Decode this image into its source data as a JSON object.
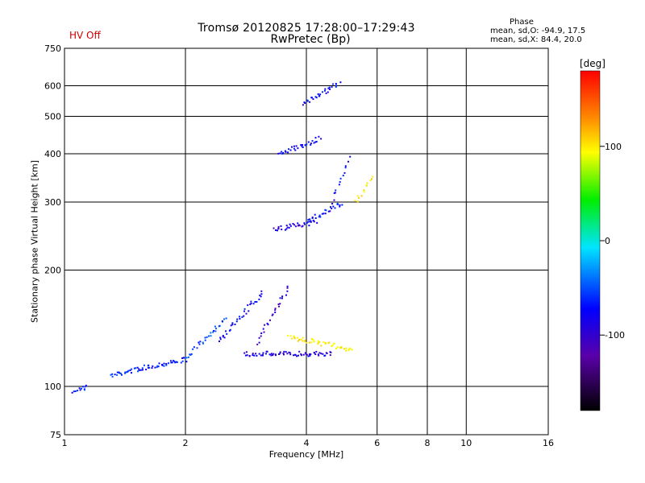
{
  "header": {
    "title": "Tromsø 20120825 17:28:00–17:29:43",
    "subtitle": "RwPretec (Bp)",
    "status": "HV Off"
  },
  "phase_box": {
    "heading": "Phase",
    "line1": "mean, sd,O: -94.9, 17.5",
    "line2": "mean, sd,X: 84.4, 20.0"
  },
  "colorbar": {
    "unit": "[deg]",
    "ticks": [
      "100",
      "0",
      "-100"
    ],
    "tick_values": [
      100,
      0,
      -100
    ],
    "range": [
      -180,
      180
    ]
  },
  "chart_data": {
    "type": "scatter",
    "xlabel": "Frequency [MHz]",
    "ylabel": "Stationary phase Virtual Height [km]",
    "x_scale": "log",
    "y_scale": "log",
    "xlim": [
      1,
      16
    ],
    "ylim": [
      75,
      750
    ],
    "x_ticks": [
      1,
      2,
      4,
      6,
      8,
      10,
      16
    ],
    "y_ticks": [
      75,
      100,
      200,
      300,
      400,
      500,
      600,
      750
    ],
    "grid": true,
    "color_by": "phase (deg)",
    "series": [
      {
        "x_start": 1.05,
        "x_end": 1.13,
        "height": 98,
        "height_end": 100,
        "phase": -95
      },
      {
        "x_start": 1.3,
        "x_end": 1.55,
        "height": 107,
        "height_end": 112,
        "phase": -90
      },
      {
        "x_start": 1.55,
        "x_end": 2.0,
        "height": 112,
        "height_end": 118,
        "phase": -95
      },
      {
        "x_start": 2.0,
        "x_end": 2.5,
        "height": 118,
        "height_end": 150,
        "phase": -85
      },
      {
        "x_start": 2.4,
        "x_end": 3.1,
        "height": 130,
        "height_end": 175,
        "phase": -100
      },
      {
        "x_start": 2.8,
        "x_end": 4.6,
        "height": 122,
        "height_end": 122,
        "phase": -110
      },
      {
        "x_start": 3.0,
        "x_end": 3.6,
        "height": 130,
        "height_end": 180,
        "phase": -115
      },
      {
        "x_start": 3.6,
        "x_end": 5.2,
        "height": 135,
        "height_end": 125,
        "phase": 95
      },
      {
        "x_start": 3.3,
        "x_end": 4.2,
        "height": 255,
        "height_end": 268,
        "phase": -110
      },
      {
        "x_start": 4.0,
        "x_end": 4.9,
        "height": 268,
        "height_end": 300,
        "phase": -95
      },
      {
        "x_start": 4.6,
        "x_end": 5.1,
        "height": 300,
        "height_end": 390,
        "phase": -100
      },
      {
        "x_start": 5.3,
        "x_end": 5.8,
        "height": 300,
        "height_end": 350,
        "phase": 95
      },
      {
        "x_start": 3.4,
        "x_end": 4.3,
        "height": 400,
        "height_end": 440,
        "phase": -100
      },
      {
        "x_start": 3.9,
        "x_end": 4.8,
        "height": 540,
        "height_end": 610,
        "phase": -100
      }
    ]
  }
}
